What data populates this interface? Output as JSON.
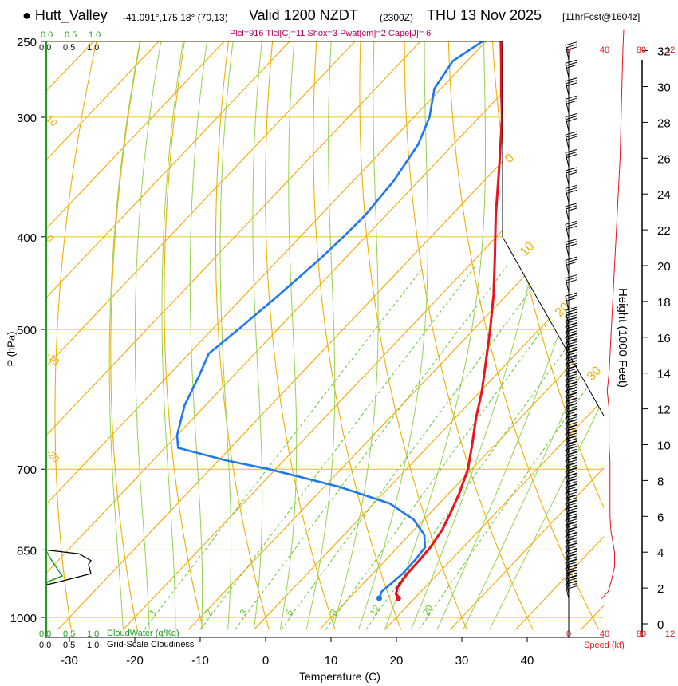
{
  "header": {
    "station": "Hutt_Valley",
    "coords": "-41.091°,175.18° (70,13)",
    "valid": "Valid 1200 NZDT",
    "utc": "(2300Z)",
    "date": "THU 13 Nov 2025",
    "forecast": "[11hrFcst@1604z]",
    "params": "Plcl=916 Tlcl[C]=11 Shox=3 Pwat[cm]=2 Cape[J]= 6"
  },
  "chart_data": {
    "type": "skew-t",
    "xlabel": "Temperature (C)",
    "ylabel": "P (hPa)",
    "right_label": "Height (1000 Feet)",
    "speed_label": "Speed (kt)",
    "cloudwater_label": "CloudWater (g/Kg)",
    "cloudiness_label": "Grid-Scale Cloudiness",
    "x_ticks": [
      -30,
      -20,
      -10,
      0,
      10,
      20,
      30,
      40
    ],
    "x_range": [
      -35,
      45
    ],
    "p_range": [
      1020,
      250
    ],
    "p_ticks": [
      250,
      300,
      400,
      500,
      700,
      850,
      1000
    ],
    "height_ticks": [
      0,
      2,
      4,
      6,
      8,
      10,
      12,
      14,
      16,
      18,
      20,
      22,
      24,
      26,
      28,
      30,
      32
    ],
    "speed_ticks": [
      "0",
      "40",
      "80",
      "12"
    ],
    "cloud_ticks": [
      "0.0",
      "0.5",
      "1.0"
    ],
    "isotherm_labels": [
      "10",
      "0",
      "-10",
      "-20"
    ],
    "adiabat_labels": [
      "0",
      "10",
      "20",
      "30"
    ],
    "mixing_ratio_labels": [
      "1",
      "2",
      "3",
      "5",
      "8",
      "12",
      "20"
    ],
    "temperature": [
      {
        "p": 955,
        "t": 17.5
      },
      {
        "p": 945,
        "t": 16.5
      },
      {
        "p": 930,
        "t": 15.8
      },
      {
        "p": 900,
        "t": 15.3
      },
      {
        "p": 870,
        "t": 15.2
      },
      {
        "p": 845,
        "t": 15.0
      },
      {
        "p": 810,
        "t": 14.3
      },
      {
        "p": 775,
        "t": 13.0
      },
      {
        "p": 740,
        "t": 11.5
      },
      {
        "p": 700,
        "t": 9.4
      },
      {
        "p": 660,
        "t": 6.5
      },
      {
        "p": 620,
        "t": 3.3
      },
      {
        "p": 580,
        "t": 0.2
      },
      {
        "p": 540,
        "t": -3.5
      },
      {
        "p": 500,
        "t": -7.5
      },
      {
        "p": 460,
        "t": -12.0
      },
      {
        "p": 420,
        "t": -17.3
      },
      {
        "p": 380,
        "t": -23.2
      },
      {
        "p": 340,
        "t": -29.4
      },
      {
        "p": 300,
        "t": -36.5
      },
      {
        "p": 280,
        "t": -40.8
      },
      {
        "p": 262,
        "t": -44.8
      },
      {
        "p": 250,
        "t": -47.7
      }
    ],
    "dewpoint": [
      {
        "p": 955,
        "t": 14.6
      },
      {
        "p": 940,
        "t": 14.0
      },
      {
        "p": 920,
        "t": 14.3
      },
      {
        "p": 900,
        "t": 14.6
      },
      {
        "p": 870,
        "t": 14.5
      },
      {
        "p": 845,
        "t": 14.2
      },
      {
        "p": 820,
        "t": 12.3
      },
      {
        "p": 790,
        "t": 8.4
      },
      {
        "p": 760,
        "t": 2.4
      },
      {
        "p": 730,
        "t": -7.8
      },
      {
        "p": 700,
        "t": -21.0
      },
      {
        "p": 685,
        "t": -29.0
      },
      {
        "p": 665,
        "t": -38.0
      },
      {
        "p": 645,
        "t": -40.0
      },
      {
        "p": 600,
        "t": -43.2
      },
      {
        "p": 560,
        "t": -45.2
      },
      {
        "p": 530,
        "t": -47.0
      },
      {
        "p": 500,
        "t": -46.0
      },
      {
        "p": 460,
        "t": -44.8
      },
      {
        "p": 420,
        "t": -43.7
      },
      {
        "p": 400,
        "t": -43.4
      },
      {
        "p": 380,
        "t": -43.2
      },
      {
        "p": 350,
        "t": -43.8
      },
      {
        "p": 320,
        "t": -45.4
      },
      {
        "p": 300,
        "t": -47.6
      },
      {
        "p": 280,
        "t": -51.0
      },
      {
        "p": 262,
        "t": -52.2
      },
      {
        "p": 250,
        "t": -50.5
      }
    ],
    "wind_barbs_heights_kft": [
      1.4,
      1.7,
      2.0,
      2.3,
      2.6,
      2.9,
      3.2,
      3.5,
      3.8,
      4.1,
      4.4,
      4.7,
      5.0,
      5.3,
      5.6,
      5.9,
      6.2,
      6.5,
      6.8,
      7.1,
      7.4,
      7.7,
      8.0,
      8.3,
      8.6,
      8.9,
      9.2,
      9.5,
      9.8,
      10.1,
      10.4,
      10.7,
      11.0,
      11.3,
      11.6,
      11.9,
      12.2,
      12.5,
      12.8,
      13.1,
      13.4,
      13.7,
      14.0,
      14.3,
      14.6,
      14.9,
      15.2,
      15.5,
      15.8,
      16.1,
      16.4,
      16.7,
      17.5,
      18.5,
      19.5,
      20.5,
      21.5,
      22.5,
      23.5,
      24.5,
      25.5,
      26.5,
      27.5,
      28.5,
      29.5,
      30.5,
      31.5,
      32.5
    ],
    "speed_profile_kft_kt": [
      [
        1.4,
        36
      ],
      [
        1.8,
        43
      ],
      [
        2.5,
        47
      ],
      [
        3.2,
        50
      ],
      [
        4.0,
        50
      ],
      [
        4.6,
        48
      ],
      [
        5.2,
        46
      ],
      [
        6.0,
        45
      ],
      [
        7.0,
        45
      ],
      [
        8.0,
        45
      ],
      [
        9.0,
        45
      ],
      [
        10.0,
        44
      ],
      [
        11.0,
        44
      ],
      [
        12.0,
        44
      ],
      [
        13.0,
        42
      ],
      [
        14.0,
        44
      ],
      [
        15.0,
        45
      ],
      [
        16.0,
        46
      ],
      [
        18.0,
        48
      ],
      [
        20.0,
        50
      ],
      [
        22.0,
        52
      ],
      [
        24.0,
        54
      ],
      [
        26.0,
        56
      ],
      [
        28.0,
        57
      ],
      [
        30.0,
        58
      ],
      [
        32.0,
        59
      ],
      [
        33.2,
        60
      ]
    ],
    "cloudiness": [
      [
        850,
        0.0
      ],
      [
        858,
        0.7
      ],
      [
        872,
        0.95
      ],
      [
        880,
        0.9
      ],
      [
        900,
        0.95
      ],
      [
        920,
        0.2
      ],
      [
        925,
        0.0
      ]
    ],
    "cloudwater": [
      [
        850,
        0.0
      ],
      [
        875,
        0.15
      ],
      [
        905,
        0.35
      ],
      [
        918,
        0.05
      ],
      [
        925,
        0.0
      ]
    ],
    "colors": {
      "temperature": "#e8141e",
      "dewpoint": "#1e78f0",
      "isotherm": "#f5a800",
      "isobar": "#e0c000",
      "dry_adiabat": "#f0b000",
      "moist_adiabat": "#96d250",
      "mixing_ratio": "#64c832",
      "label_red": "#e8141e",
      "label_green": "#1ea01e",
      "parcel": "#b4005a"
    }
  }
}
